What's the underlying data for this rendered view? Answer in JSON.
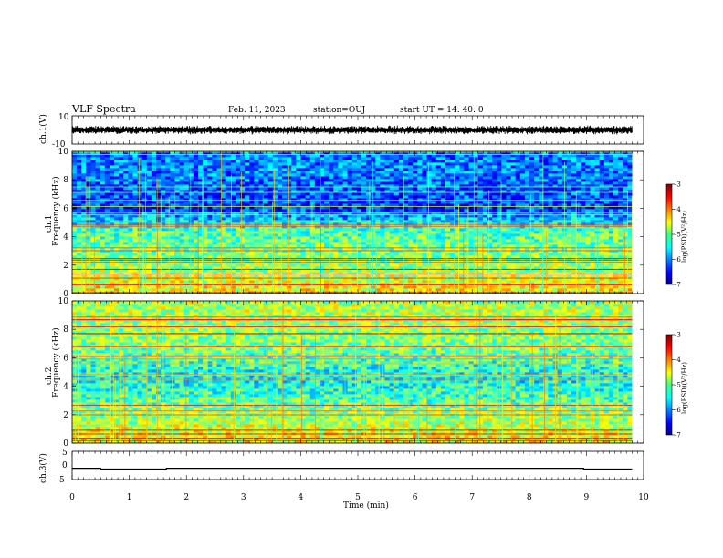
{
  "header": {
    "title": "VLF Spectra",
    "date": "Feb. 11, 2023",
    "station": "station=OUJ",
    "start_ut": "start  UT =  14: 40: 0"
  },
  "panels": {
    "ch1_waveform": {
      "ylabel": "ch.1(V)",
      "ymax_label": "10",
      "ymin_label": "-10"
    },
    "ch1_spec": {
      "ylabel_top": "ch.1",
      "ylabel": "Frequency (kHz)",
      "yticks": [
        "0",
        "2",
        "4",
        "6",
        "8",
        "10"
      ]
    },
    "ch2_spec": {
      "ylabel_top": "ch.2",
      "ylabel": "Frequency (kHz)",
      "yticks": [
        "0",
        "2",
        "4",
        "6",
        "8",
        "10"
      ]
    },
    "ch3_waveform": {
      "ylabel": "ch.3(V)",
      "ymax_label": "5",
      "ymid_label": "0",
      "ymin_label": "-5"
    }
  },
  "colorbar": {
    "label": "log(PSD)(V²/Hz)",
    "ticks": [
      "-3",
      "-4",
      "-5",
      "-6",
      "-7"
    ]
  },
  "xaxis": {
    "label": "Time (min)",
    "ticks": [
      "0",
      "1",
      "2",
      "3",
      "4",
      "5",
      "6",
      "7",
      "8",
      "9",
      "10"
    ]
  },
  "chart_data": [
    {
      "type": "line",
      "title": "ch.1 waveform",
      "x_range_min": [
        0,
        9.8
      ],
      "ylim": [
        -10,
        10
      ],
      "approx_amplitude_V": 3,
      "grid": false
    },
    {
      "type": "heatmap",
      "title": "ch.1 spectrogram",
      "x_range_min": [
        0,
        9.8
      ],
      "ylim_kHz": [
        0,
        10
      ],
      "color_scale_logPSD": [
        -7,
        -3
      ],
      "band_levels": [
        {
          "freq_kHz": 0.5,
          "logPSD": -4.5
        },
        {
          "freq_kHz": 1.5,
          "logPSD": -4.8
        },
        {
          "freq_kHz": 4.5,
          "logPSD": -5.2
        },
        {
          "freq_kHz": 6.0,
          "logPSD": -6.3
        },
        {
          "freq_kHz": 8.5,
          "logPSD": -6.0
        }
      ]
    },
    {
      "type": "heatmap",
      "title": "ch.2 spectrogram",
      "x_range_min": [
        0,
        9.8
      ],
      "ylim_kHz": [
        0,
        10
      ],
      "color_scale_logPSD": [
        -7,
        -3
      ],
      "band_levels": [
        {
          "freq_kHz": 0.5,
          "logPSD": -4.5
        },
        {
          "freq_kHz": 1.5,
          "logPSD": -4.8
        },
        {
          "freq_kHz": 4.5,
          "logPSD": -5.5
        },
        {
          "freq_kHz": 7.0,
          "logPSD": -5.0
        },
        {
          "freq_kHz": 9.0,
          "logPSD": -4.8
        }
      ]
    },
    {
      "type": "line",
      "title": "ch.3 waveform",
      "ylim": [
        -5,
        5
      ],
      "x": [
        0,
        0.5,
        0.5,
        1.65,
        1.65,
        8.95,
        8.95,
        9.8
      ],
      "y": [
        -1,
        -1,
        -1.3,
        -1.3,
        -1,
        -1,
        -1.3,
        -1.3
      ]
    }
  ]
}
